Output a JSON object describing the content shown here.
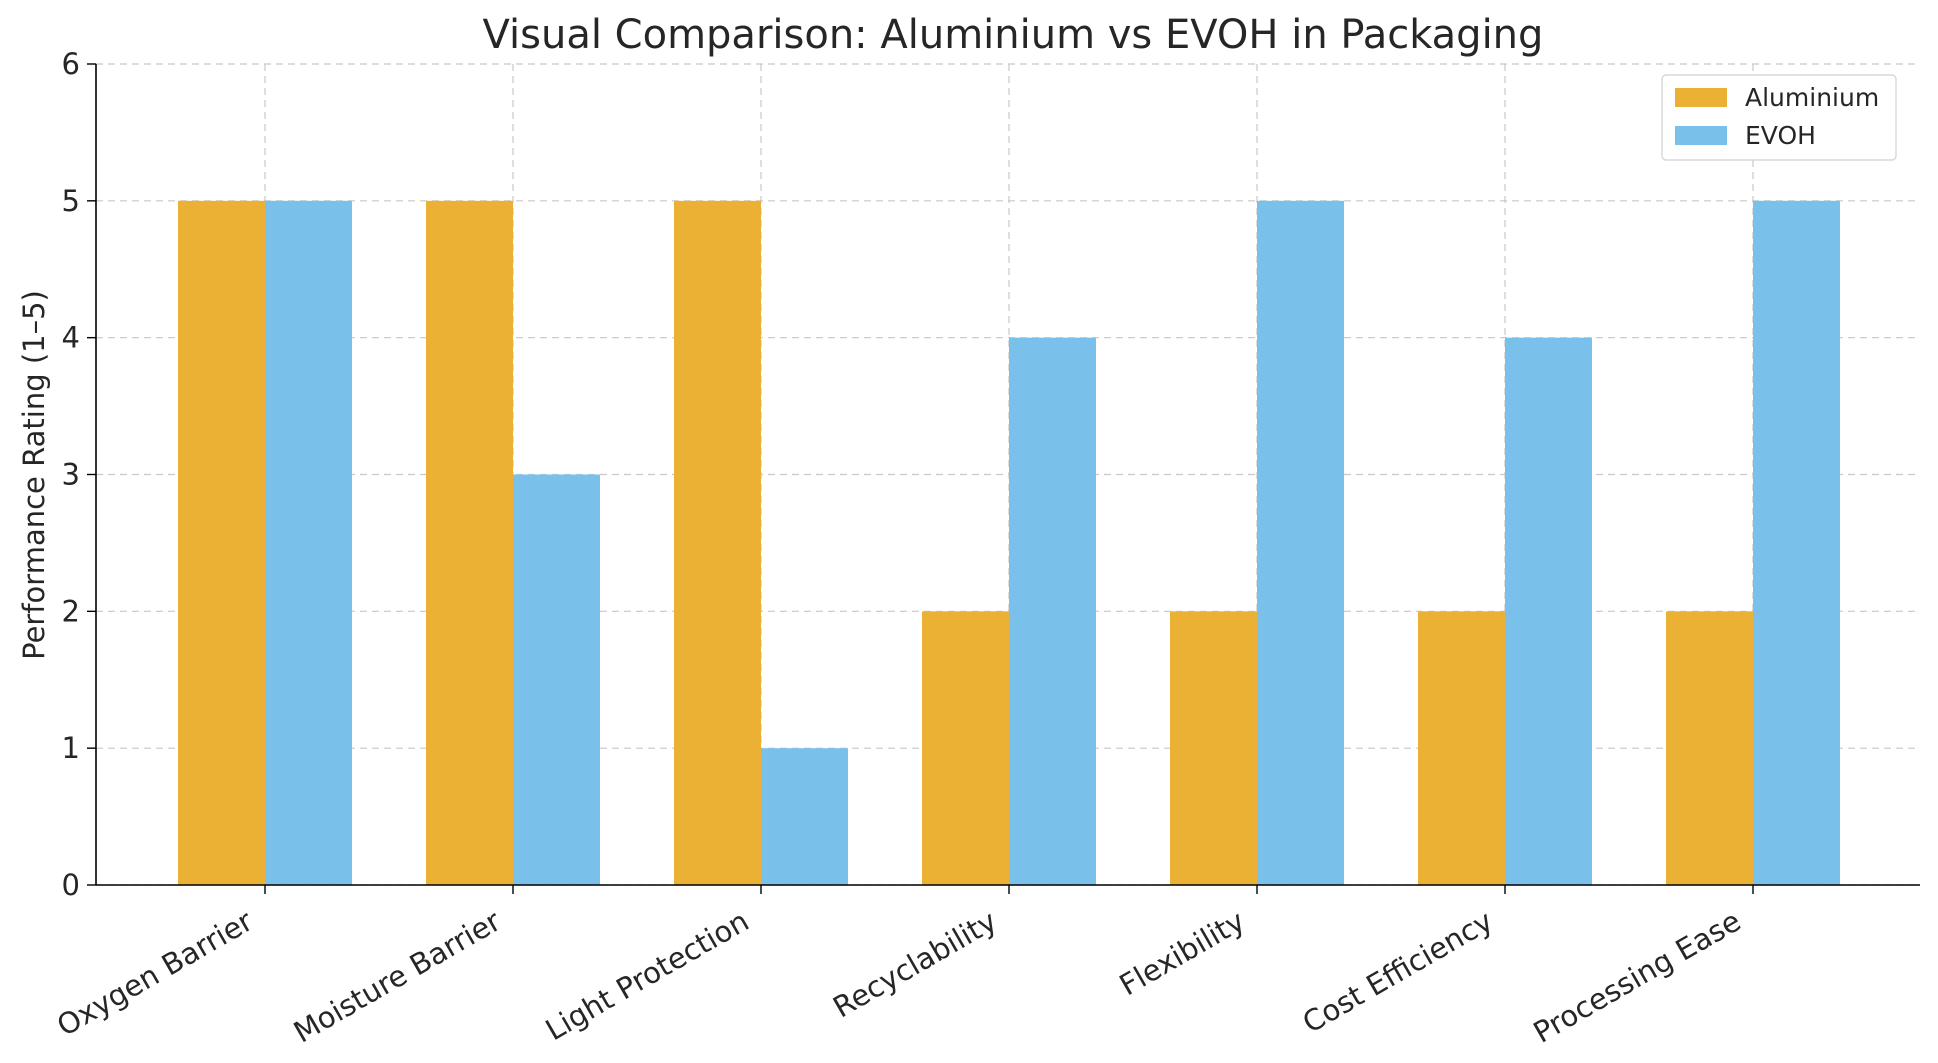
{
  "chart_data": {
    "type": "bar",
    "title": "Visual Comparison: Aluminium vs EVOH in Packaging",
    "xlabel": "",
    "ylabel": "Performance Rating (1–5)",
    "ylim": [
      0,
      6
    ],
    "yticks": [
      "0",
      "1",
      "2",
      "3",
      "4",
      "5",
      "6"
    ],
    "categories": [
      "Oxygen Barrier",
      "Moisture Barrier",
      "Light Protection",
      "Recyclability",
      "Flexibility",
      "Cost Efficiency",
      "Processing Ease"
    ],
    "series": [
      {
        "name": "Aluminium",
        "color": "#EAB134",
        "values": [
          5,
          5,
          5,
          2,
          2,
          2,
          2
        ]
      },
      {
        "name": "EVOH",
        "color": "#79C1EB",
        "values": [
          5,
          3,
          1,
          4,
          5,
          4,
          5
        ]
      }
    ],
    "grid": true,
    "legend_position": "top-right"
  }
}
